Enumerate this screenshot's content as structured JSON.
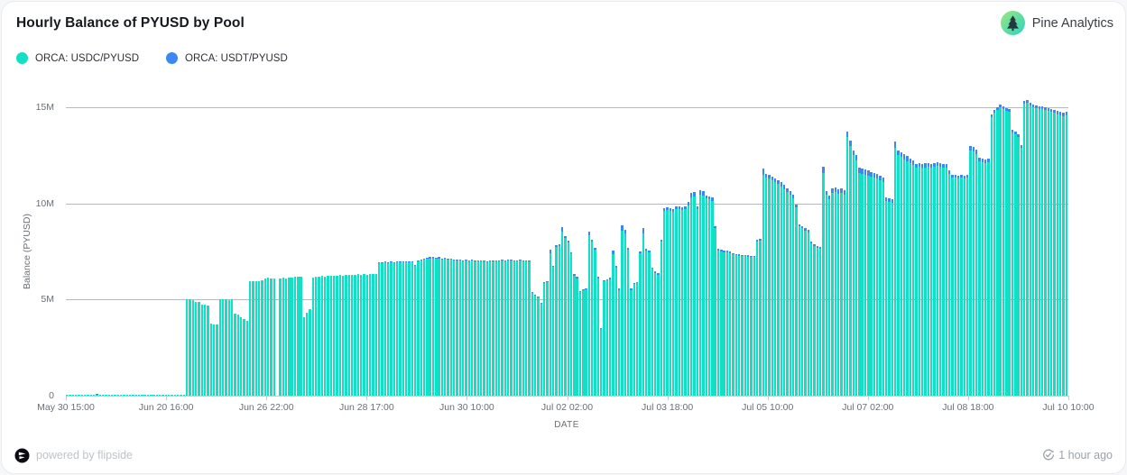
{
  "header": {
    "title": "Hourly Balance of PYUSD by Pool",
    "brand": "Pine Analytics",
    "brand_colors": {
      "gradient_start": "#9ce87f",
      "gradient_end": "#2cd4c0",
      "tree": "#233740"
    }
  },
  "footer": {
    "powered_by": "powered by flipside",
    "updated": "1 hour ago"
  },
  "chart_data": {
    "type": "bar",
    "stacked": true,
    "title": "Hourly Balance of PYUSD by Pool",
    "xlabel": "DATE",
    "ylabel": "Balance (PYUSD)",
    "unit": "M",
    "ylim": [
      0,
      15
    ],
    "grid": true,
    "legend_position": "top-left",
    "y_ticks": [
      {
        "value": 0,
        "label": "0"
      },
      {
        "value": 5,
        "label": "5M"
      },
      {
        "value": 10,
        "label": "10M"
      },
      {
        "value": 15,
        "label": "15M"
      }
    ],
    "x_tick_labels": [
      "May 30 15:00",
      "Jun 20 16:00",
      "Jun 26 22:00",
      "Jun 28 17:00",
      "Jun 30 10:00",
      "Jul 02 02:00",
      "Jul 03 18:00",
      "Jul 05 10:00",
      "Jul 07 02:00",
      "Jul 08 18:00",
      "Jul 10 10:00"
    ],
    "series": [
      {
        "name": "ORCA: USDC/PYUSD",
        "color": "#12dfc4",
        "values": [
          0.06,
          0.06,
          0.06,
          0.06,
          0.06,
          0.06,
          0.06,
          0.06,
          0.06,
          0.06,
          0.06,
          0.06,
          0.06,
          0.06,
          0.06,
          0.06,
          0.06,
          0.06,
          0.06,
          0.06,
          0.06,
          0.06,
          0.06,
          0.06,
          0.06,
          0.06,
          0.06,
          0.06,
          0.06,
          0.06,
          0.06,
          0.06,
          0.06,
          0.06,
          0.06,
          0.06,
          0.06,
          0.06,
          0.06,
          0.06,
          5,
          5,
          4.95,
          4.9,
          4.9,
          4.75,
          4.72,
          4.7,
          3.75,
          3.7,
          3.72,
          5,
          5.02,
          5,
          4.98,
          5,
          4.25,
          4.2,
          4.1,
          4,
          3.9,
          5.95,
          5.95,
          5.97,
          5.95,
          6,
          6.1,
          6.12,
          6.1,
          6.1,
          0,
          6.1,
          6.12,
          6.1,
          6.15,
          6.15,
          6.18,
          6.2,
          6.2,
          4.1,
          4.3,
          4.5,
          6.15,
          6.2,
          6.2,
          6.22,
          6.2,
          6.22,
          6.25,
          6.25,
          6.25,
          6.28,
          6.25,
          6.28,
          6.3,
          6.3,
          6.3,
          6.32,
          6.3,
          6.32,
          6.3,
          6.32,
          6.35,
          6.35,
          6.9,
          6.9,
          6.92,
          6.9,
          6.93,
          6.9,
          6.92,
          6.95,
          6.92,
          6.95,
          6.93,
          6.95,
          6.75,
          7,
          7.05,
          7.1,
          7.12,
          7.15,
          7.15,
          7.12,
          7.15,
          7.1,
          7.12,
          7.1,
          7.08,
          7.05,
          7.05,
          7.02,
          7,
          7.05,
          7,
          7.02,
          7,
          7,
          6.98,
          7,
          6.95,
          7,
          6.98,
          7,
          7,
          7.02,
          7,
          7.05,
          7.02,
          7,
          7,
          7.02,
          7,
          6.98,
          7,
          5.35,
          5.2,
          5.1,
          4.8,
          5.85,
          5.9,
          7.4,
          6.7,
          7.75,
          7.8,
          8.55,
          8.2,
          7.95,
          7.4,
          6.25,
          6.1,
          5.4,
          5.5,
          5.55,
          8.35,
          8,
          7.6,
          6.1,
          3.45,
          5.95,
          6,
          6.05,
          7.35,
          6.65,
          5.5,
          8.6,
          8.45,
          7.6,
          5.5,
          5.8,
          5.85,
          7.4,
          8.45,
          7.55,
          7.45,
          6.6,
          6.4,
          6.3,
          8,
          9.6,
          9.65,
          9.6,
          9.55,
          9.7,
          9.7,
          9.65,
          9.7,
          9.9,
          10.3,
          10.35,
          9.7,
          10.45,
          10.4,
          10.25,
          10.2,
          10.15,
          8.7,
          7.55,
          7.5,
          7.45,
          7.45,
          7.4,
          7.35,
          7.3,
          7.28,
          7.25,
          7.25,
          7.22,
          7.2,
          7.2,
          8,
          8.05,
          11.5,
          11.35,
          11.3,
          11.2,
          11.1,
          11,
          10.9,
          10.75,
          10.6,
          10.45,
          10.25,
          9.8,
          8.8,
          8.7,
          8.6,
          8.5,
          7.9,
          7.8,
          7.7,
          7.65,
          11.6,
          10.45,
          10.2,
          10.55,
          10.6,
          10.5,
          10.55,
          10.45,
          13.45,
          13,
          12.5,
          12.25,
          11.6,
          11.55,
          11.5,
          11.45,
          11.4,
          11.35,
          11.3,
          11.2,
          11.1,
          10.15,
          10.1,
          10.05,
          12.9,
          12.5,
          12.4,
          12.3,
          12.2,
          12.1,
          12,
          11.85,
          11.9,
          11.85,
          11.88,
          11.9,
          11.85,
          11.9,
          11.95,
          11.9,
          11.85,
          11.85,
          11.55,
          11.35,
          11.35,
          11.3,
          11.35,
          11.3,
          11.35,
          12.75,
          12.7,
          12.55,
          12.2,
          12.15,
          12.1,
          12.15,
          14.5,
          14.7,
          14.85,
          15,
          14.9,
          14.8,
          14.75,
          13.7,
          13.6,
          13.45,
          12.9,
          15.2,
          15.25,
          15.1,
          15,
          14.95,
          14.9,
          14.9,
          14.85,
          14.8,
          14.75,
          14.7,
          14.65,
          14.6,
          14.55,
          14.6
        ]
      },
      {
        "name": "ORCA: USDT/PYUSD",
        "color": "#3c87f2",
        "values": [
          0,
          0,
          0,
          0,
          0,
          0,
          0,
          0,
          0,
          0,
          0.03,
          0,
          0,
          0,
          0,
          0,
          0,
          0,
          0,
          0,
          0,
          0,
          0,
          0,
          0,
          0,
          0,
          0,
          0,
          0,
          0,
          0,
          0,
          0,
          0,
          0,
          0,
          0,
          0,
          0,
          0,
          0,
          0,
          0,
          0,
          0,
          0,
          0,
          0,
          0,
          0,
          0,
          0,
          0,
          0,
          0,
          0,
          0,
          0,
          0,
          0,
          0,
          0,
          0,
          0,
          0,
          0,
          0,
          0,
          0,
          0,
          0,
          0,
          0,
          0,
          0,
          0,
          0,
          0,
          0,
          0,
          0,
          0,
          0,
          0,
          0,
          0,
          0,
          0,
          0,
          0,
          0,
          0,
          0,
          0,
          0,
          0,
          0,
          0,
          0,
          0,
          0,
          0,
          0,
          0.05,
          0.05,
          0.05,
          0.05,
          0.05,
          0.05,
          0.05,
          0.05,
          0.05,
          0.05,
          0.05,
          0.05,
          0.05,
          0.05,
          0.05,
          0.05,
          0.05,
          0.05,
          0.05,
          0.05,
          0.05,
          0.05,
          0.05,
          0.05,
          0.05,
          0.05,
          0.05,
          0.05,
          0.05,
          0.05,
          0.05,
          0.05,
          0.05,
          0.05,
          0.05,
          0.05,
          0.05,
          0.05,
          0.05,
          0.05,
          0.05,
          0.05,
          0.05,
          0.05,
          0.05,
          0.05,
          0.05,
          0.05,
          0.05,
          0.05,
          0.05,
          0.05,
          0.05,
          0.05,
          0.05,
          0.05,
          0.05,
          0.2,
          0.07,
          0.1,
          0.1,
          0.2,
          0.1,
          0.1,
          0.07,
          0.07,
          0.07,
          0.05,
          0.05,
          0.05,
          0.2,
          0.1,
          0.1,
          0.07,
          0.05,
          0.07,
          0.07,
          0.07,
          0.2,
          0.08,
          0.06,
          0.25,
          0.2,
          0.1,
          0.06,
          0.07,
          0.07,
          0.1,
          0.25,
          0.1,
          0.1,
          0.08,
          0.08,
          0.08,
          0.1,
          0.15,
          0.15,
          0.15,
          0.15,
          0.15,
          0.15,
          0.15,
          0.15,
          0.2,
          0.25,
          0.25,
          0.15,
          0.25,
          0.25,
          0.15,
          0.15,
          0.15,
          0.1,
          0.08,
          0.08,
          0.08,
          0.08,
          0.08,
          0.08,
          0.08,
          0.08,
          0.08,
          0.08,
          0.08,
          0.08,
          0.08,
          0.1,
          0.1,
          0.3,
          0.2,
          0.2,
          0.2,
          0.2,
          0.2,
          0.2,
          0.2,
          0.2,
          0.2,
          0.2,
          0.15,
          0.12,
          0.12,
          0.12,
          0.12,
          0.1,
          0.1,
          0.1,
          0.1,
          0.3,
          0.2,
          0.2,
          0.25,
          0.25,
          0.25,
          0.25,
          0.25,
          0.3,
          0.25,
          0.25,
          0.25,
          0.25,
          0.25,
          0.25,
          0.25,
          0.25,
          0.25,
          0.25,
          0.25,
          0.25,
          0.15,
          0.15,
          0.15,
          0.3,
          0.25,
          0.25,
          0.25,
          0.25,
          0.25,
          0.25,
          0.2,
          0.2,
          0.2,
          0.2,
          0.2,
          0.2,
          0.2,
          0.2,
          0.2,
          0.2,
          0.2,
          0.15,
          0.15,
          0.15,
          0.15,
          0.15,
          0.15,
          0.15,
          0.25,
          0.25,
          0.25,
          0.2,
          0.2,
          0.2,
          0.2,
          0.15,
          0.15,
          0.15,
          0.15,
          0.15,
          0.15,
          0.15,
          0.15,
          0.15,
          0.15,
          0.15,
          0.15,
          0.15,
          0.15,
          0.15,
          0.15,
          0.15,
          0.15,
          0.15,
          0.15,
          0.15,
          0.15,
          0.15,
          0.15,
          0.15,
          0.15
        ]
      }
    ]
  }
}
